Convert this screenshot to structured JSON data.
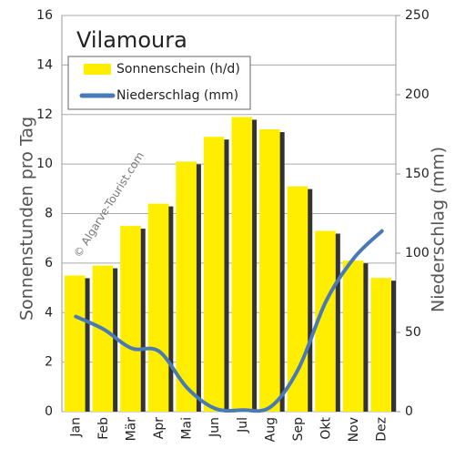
{
  "chart_data": {
    "type": "bar",
    "title": "Vilamoura",
    "watermark": "© Algarve-Tourist.com",
    "categories": [
      "Jan",
      "Feb",
      "Mär",
      "Apr",
      "Mai",
      "Jun",
      "Jul",
      "Aug",
      "Sep",
      "Okt",
      "Nov",
      "Dez"
    ],
    "series": [
      {
        "name": "Sonnenschein (h/d)",
        "type": "bar",
        "color": "#ffee00",
        "values": [
          5.5,
          5.9,
          7.5,
          8.4,
          10.1,
          11.1,
          11.9,
          11.4,
          9.1,
          7.3,
          6.1,
          5.4
        ]
      },
      {
        "name": "Niederschlag (mm)",
        "type": "line",
        "axis": "y2",
        "color": "#4a7ab5",
        "values": [
          60,
          52,
          40,
          38,
          15,
          2,
          1,
          3,
          27,
          70,
          97,
          114
        ]
      }
    ],
    "y_label": "Sonnenstunden pro Tag",
    "y2_label": "Niederschlag (mm)",
    "ylim": [
      0,
      16
    ],
    "yticks": [
      0,
      2,
      4,
      6,
      8,
      10,
      12,
      14,
      16
    ],
    "y2lim": [
      0,
      250
    ],
    "y2ticks": [
      0,
      50,
      100,
      150,
      200,
      250
    ],
    "grid": true
  }
}
